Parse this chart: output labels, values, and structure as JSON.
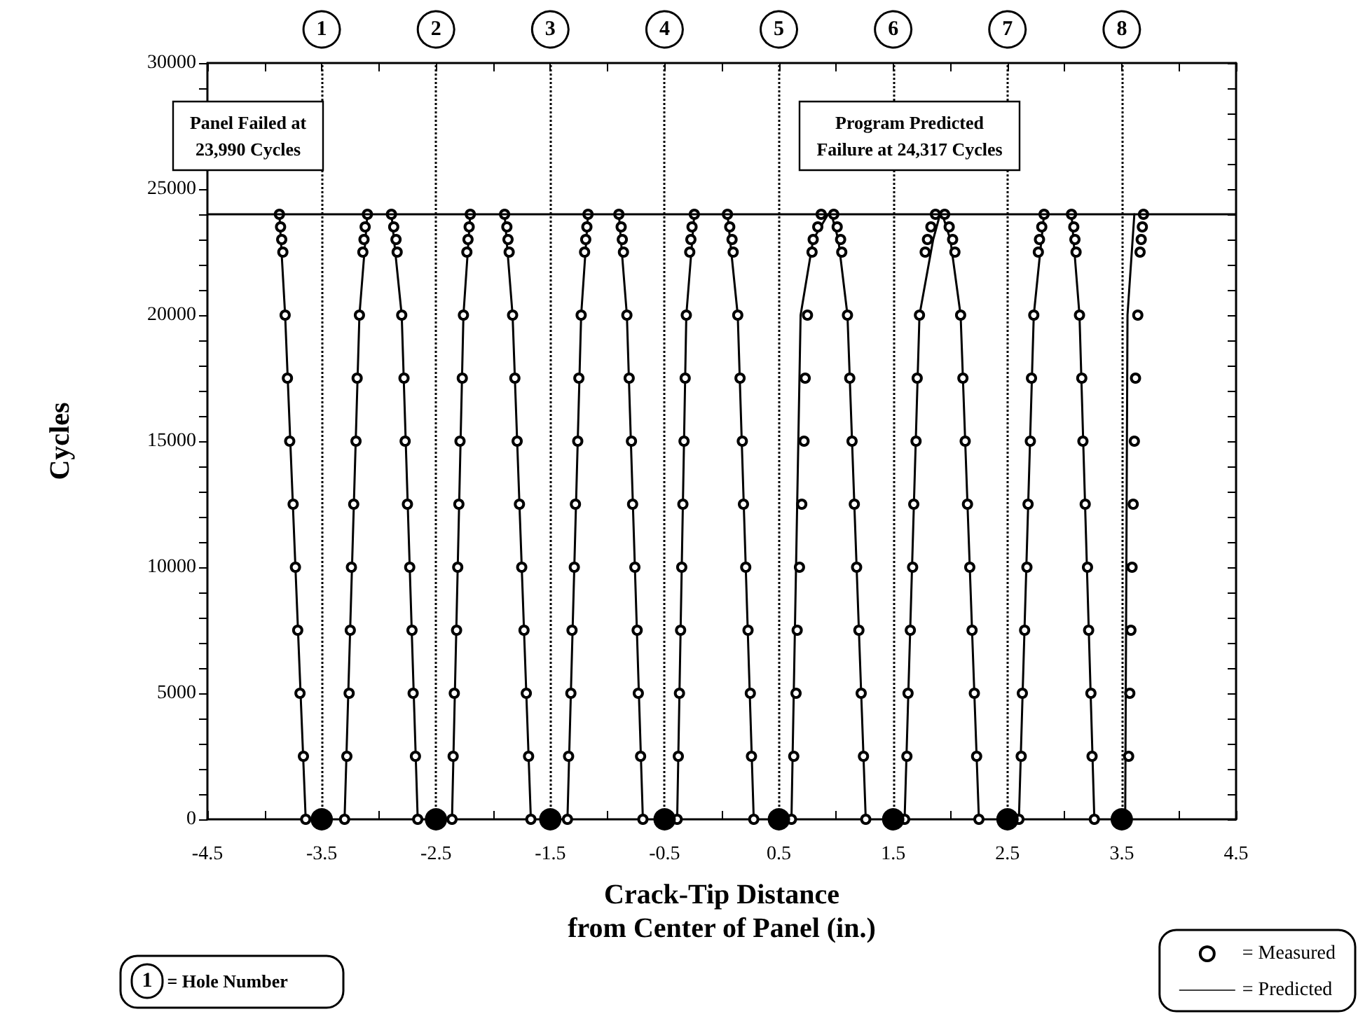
{
  "chart_data": {
    "type": "scatter",
    "xlabel": "Crack-Tip Distance\nfrom Center of Panel (in.)",
    "ylabel": "Cycles",
    "xlim": [
      -4.5,
      4.5
    ],
    "xticks": [
      -4.5,
      {
        "value": -4,
        "label": null
      },
      -3.5,
      {
        "value": -3,
        "label": null
      },
      -2.5,
      {
        "value": -2,
        "label": null
      },
      -1.5,
      {
        "value": -1,
        "label": null
      },
      -0.5,
      {
        "value": 0,
        "label": null
      },
      0.5,
      {
        "value": 1,
        "label": null
      },
      1.5,
      {
        "value": 2,
        "label": null
      },
      2.5,
      {
        "value": 3,
        "label": null
      },
      3.5,
      {
        "value": 4,
        "label": null
      },
      4.5
    ],
    "ylim": [
      0,
      30000
    ],
    "yticks": [
      0,
      {
        "value": 1000,
        "label": null
      },
      {
        "value": 2000,
        "label": null
      },
      {
        "value": 3000,
        "label": null
      },
      {
        "value": 4000,
        "label": null
      },
      5000,
      {
        "value": 6000,
        "label": null
      },
      {
        "value": 7000,
        "label": null
      },
      {
        "value": 8000,
        "label": null
      },
      {
        "value": 9000,
        "label": null
      },
      10000,
      {
        "value": 11000,
        "label": null
      },
      {
        "value": 12000,
        "label": null
      },
      {
        "value": 13000,
        "label": null
      },
      {
        "value": 14000,
        "label": null
      },
      15000,
      {
        "value": 16000,
        "label": null
      },
      {
        "value": 17000,
        "label": null
      },
      {
        "value": 18000,
        "label": null
      },
      {
        "value": 19000,
        "label": null
      },
      20000,
      {
        "value": 21000,
        "label": null
      },
      {
        "value": 22000,
        "label": null
      },
      {
        "value": 23000,
        "label": null
      },
      {
        "value": 24000,
        "label": null
      },
      25000,
      {
        "value": 26000,
        "label": null
      },
      {
        "value": 27000,
        "label": null
      },
      {
        "value": 28000,
        "label": null
      },
      {
        "value": 29000,
        "label": null
      },
      30000
    ],
    "grid": false,
    "legend": "bottom right",
    "series": [
      {
        "name": "= Measured",
        "type": "scatter",
        "marker": "circle",
        "color": "#000000",
        "x": [
          -3.64,
          -3.66,
          -3.69,
          -3.71,
          -3.73,
          -3.75,
          -3.78,
          -3.8,
          -3.82,
          -3.84,
          -3.85,
          -3.86,
          -3.87,
          -3.3,
          -3.28,
          -3.26,
          -3.25,
          -3.24,
          -3.22,
          -3.2,
          -3.19,
          -3.17,
          -3.14,
          -3.13,
          -3.12,
          -3.1,
          -2.66,
          -2.68,
          -2.7,
          -2.71,
          -2.73,
          -2.75,
          -2.77,
          -2.78,
          -2.8,
          -2.84,
          -2.85,
          -2.87,
          -2.89,
          -2.36,
          -2.35,
          -2.34,
          -2.32,
          -2.31,
          -2.3,
          -2.29,
          -2.27,
          -2.26,
          -2.23,
          -2.22,
          -2.21,
          -2.2,
          -1.67,
          -1.69,
          -1.71,
          -1.73,
          -1.75,
          -1.77,
          -1.79,
          -1.81,
          -1.83,
          -1.86,
          -1.87,
          -1.88,
          -1.9,
          -1.35,
          -1.34,
          -1.32,
          -1.31,
          -1.29,
          -1.28,
          -1.26,
          -1.25,
          -1.23,
          -1.2,
          -1.19,
          -1.18,
          -1.17,
          -0.69,
          -0.71,
          -0.73,
          -0.74,
          -0.76,
          -0.78,
          -0.79,
          -0.81,
          -0.83,
          -0.86,
          -0.87,
          -0.88,
          -0.9,
          -0.39,
          -0.38,
          -0.37,
          -0.36,
          -0.35,
          -0.34,
          -0.33,
          -0.32,
          -0.31,
          -0.28,
          -0.27,
          -0.26,
          -0.24,
          0.28,
          0.26,
          0.25,
          0.23,
          0.21,
          0.19,
          0.18,
          0.16,
          0.14,
          0.1,
          0.09,
          0.07,
          0.05,
          0.61,
          0.63,
          0.65,
          0.66,
          0.68,
          0.7,
          0.72,
          0.73,
          0.75,
          0.79,
          0.8,
          0.84,
          0.87,
          1.26,
          1.24,
          1.22,
          1.2,
          1.18,
          1.16,
          1.14,
          1.12,
          1.1,
          1.05,
          1.04,
          1.01,
          0.98,
          1.6,
          1.62,
          1.63,
          1.65,
          1.67,
          1.68,
          1.7,
          1.71,
          1.73,
          1.78,
          1.8,
          1.83,
          1.87,
          2.25,
          2.23,
          2.21,
          2.19,
          2.17,
          2.15,
          2.13,
          2.11,
          2.09,
          2.04,
          2.02,
          1.99,
          1.95,
          2.6,
          2.62,
          2.63,
          2.65,
          2.67,
          2.68,
          2.7,
          2.71,
          2.73,
          2.77,
          2.78,
          2.8,
          2.82,
          3.26,
          3.24,
          3.23,
          3.21,
          3.2,
          3.18,
          3.16,
          3.15,
          3.13,
          3.1,
          3.09,
          3.08,
          3.06,
          3.56,
          3.57,
          3.58,
          3.59,
          3.6,
          3.61,
          3.62,
          3.64,
          3.66,
          3.67,
          3.68,
          3.69
        ],
        "values": [
          0,
          2500,
          5000,
          7500,
          10000,
          12500,
          15000,
          17500,
          20000,
          22500,
          23000,
          23500,
          24000,
          0,
          2500,
          5000,
          7500,
          10000,
          12500,
          15000,
          17500,
          20000,
          22500,
          23000,
          23500,
          24000,
          0,
          2500,
          5000,
          7500,
          10000,
          12500,
          15000,
          17500,
          20000,
          22500,
          23000,
          23500,
          24000,
          0,
          2500,
          5000,
          7500,
          10000,
          12500,
          15000,
          17500,
          20000,
          22500,
          23000,
          23500,
          24000,
          0,
          2500,
          5000,
          7500,
          10000,
          12500,
          15000,
          17500,
          20000,
          22500,
          23000,
          23500,
          24000,
          0,
          2500,
          5000,
          7500,
          10000,
          12500,
          15000,
          17500,
          20000,
          22500,
          23000,
          23500,
          24000,
          0,
          2500,
          5000,
          7500,
          10000,
          12500,
          15000,
          17500,
          20000,
          22500,
          23000,
          23500,
          24000,
          0,
          2500,
          5000,
          7500,
          10000,
          12500,
          15000,
          17500,
          20000,
          22500,
          23000,
          23500,
          24000,
          0,
          2500,
          5000,
          7500,
          10000,
          12500,
          15000,
          17500,
          20000,
          22500,
          23000,
          23500,
          24000,
          0,
          2500,
          5000,
          7500,
          10000,
          12500,
          15000,
          17500,
          20000,
          22500,
          23000,
          23500,
          24000,
          0,
          2500,
          5000,
          7500,
          10000,
          12500,
          15000,
          17500,
          20000,
          22500,
          23000,
          23500,
          24000,
          0,
          2500,
          5000,
          7500,
          10000,
          12500,
          15000,
          17500,
          20000,
          22500,
          23000,
          23500,
          24000,
          0,
          2500,
          5000,
          7500,
          10000,
          12500,
          15000,
          17500,
          20000,
          22500,
          23000,
          23500,
          24000,
          0,
          2500,
          5000,
          7500,
          10000,
          12500,
          15000,
          17500,
          20000,
          22500,
          23000,
          23500,
          24000,
          0,
          2500,
          5000,
          7500,
          10000,
          12500,
          15000,
          17500,
          20000,
          22500,
          23000,
          23500,
          24000,
          2500,
          5000,
          7500,
          10000,
          12500,
          15000,
          17500,
          20000,
          22500,
          23000,
          23500,
          24000
        ]
      },
      {
        "name": "= Predicted",
        "type": "line",
        "marker": "none",
        "line_style": "solid",
        "color": "#000000",
        "x": [
          -3.64,
          -3.82,
          -3.87,
          null,
          -3.3,
          -3.17,
          -3.1,
          null,
          -2.66,
          -2.8,
          -2.89,
          null,
          -2.36,
          -2.26,
          -2.2,
          null,
          -1.67,
          -1.83,
          -1.9,
          null,
          -1.35,
          -1.23,
          -1.17,
          null,
          -0.69,
          -0.83,
          -0.9,
          null,
          -0.39,
          -0.31,
          -0.24,
          null,
          0.28,
          0.14,
          0.05,
          null,
          0.61,
          0.69,
          0.8,
          0.93,
          null,
          1.26,
          1.1,
          1.02,
          0.96,
          null,
          1.6,
          1.73,
          1.85,
          1.91,
          null,
          2.25,
          2.09,
          2.0,
          1.93,
          null,
          2.6,
          2.73,
          2.82,
          null,
          3.26,
          3.13,
          3.06,
          null,
          3.53,
          3.55,
          3.61
        ],
        "values": [
          0,
          20000,
          24000,
          null,
          0,
          20000,
          24000,
          null,
          0,
          20000,
          24000,
          null,
          0,
          20000,
          24000,
          null,
          0,
          20000,
          24000,
          null,
          0,
          20000,
          24000,
          null,
          0,
          20000,
          24000,
          null,
          0,
          20000,
          24000,
          null,
          0,
          20000,
          24000,
          null,
          0,
          20000,
          23000,
          24000,
          null,
          0,
          20000,
          23000,
          24000,
          null,
          0,
          20000,
          23000,
          24000,
          null,
          0,
          20000,
          23000,
          24000,
          null,
          0,
          20000,
          24000,
          null,
          0,
          20000,
          24000,
          null,
          0,
          20000,
          24000
        ]
      },
      {
        "type": "scatter",
        "marker": "circle",
        "color": "#000000",
        "x": [
          -3.5,
          -2.5,
          -1.5,
          -0.5,
          0.5,
          1.5,
          2.5,
          3.5
        ],
        "values": [
          0,
          0,
          0,
          0,
          0,
          0,
          0,
          0
        ]
      }
    ],
    "ref_lines": [
      {
        "axis": "x",
        "value": -3.5,
        "line_style": "dotted"
      },
      {
        "axis": "x",
        "value": -2.5,
        "line_style": "dotted"
      },
      {
        "axis": "x",
        "value": -1.5,
        "line_style": "dotted"
      },
      {
        "axis": "x",
        "value": -0.5,
        "line_style": "dotted"
      },
      {
        "axis": "x",
        "value": 0.5,
        "line_style": "dotted"
      },
      {
        "axis": "x",
        "value": 1.5,
        "line_style": "dotted"
      },
      {
        "axis": "x",
        "value": 2.5,
        "line_style": "dotted"
      },
      {
        "axis": "x",
        "value": 3.5,
        "line_style": "dotted"
      },
      {
        "axis": "y",
        "value": 24000,
        "line_style": "solid"
      }
    ],
    "annotations": [
      "Panel Failed at\n23,990 Cycles",
      "Program Predicted\nFailure at 24,317 Cycles",
      "1 = Hole Number",
      {
        "text": "1",
        "x": -3.5,
        "y": 30000
      },
      {
        "text": "2",
        "x": -2.5,
        "y": 30000
      },
      {
        "text": "3",
        "x": -1.5,
        "y": 30000
      },
      {
        "text": "4",
        "x": -0.5,
        "y": 30000
      },
      {
        "text": "5",
        "x": 0.5,
        "y": 30000
      },
      {
        "text": "6",
        "x": 1.5,
        "y": 30000
      },
      {
        "text": "7",
        "x": 2.5,
        "y": 30000
      },
      {
        "text": "8",
        "x": 3.5,
        "y": 30000
      }
    ]
  }
}
